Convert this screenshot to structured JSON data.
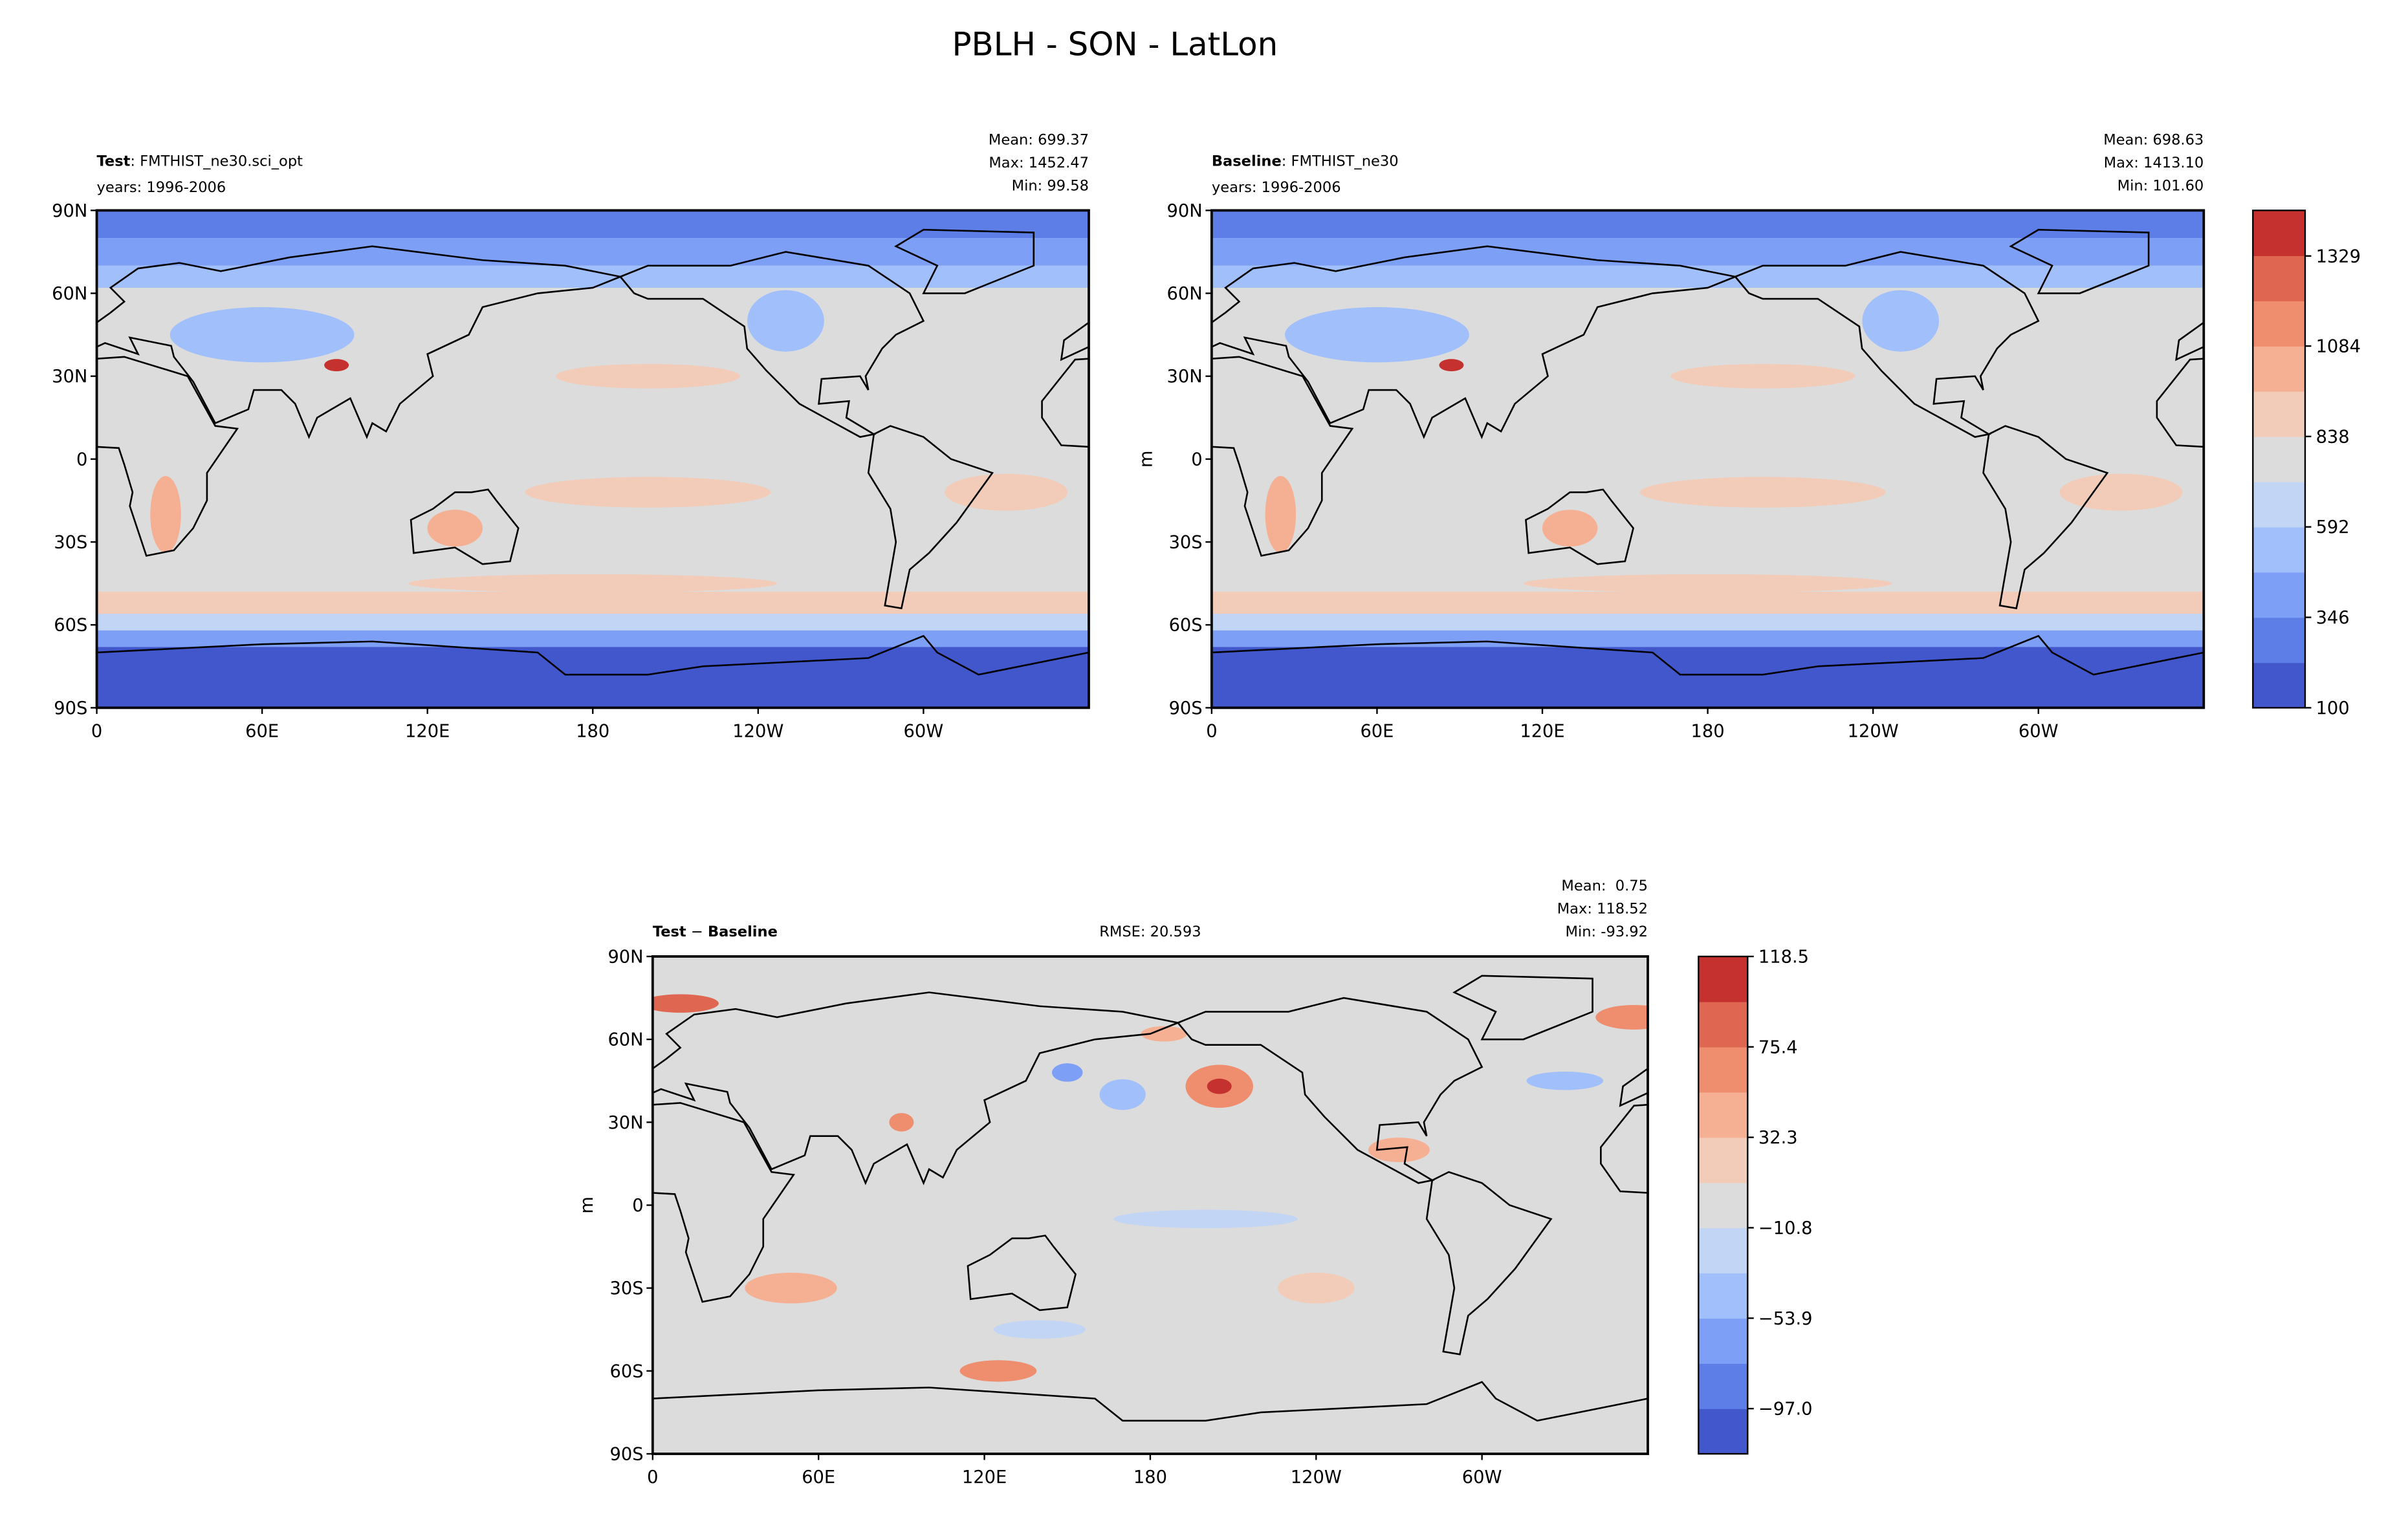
{
  "suptitle": "PBLH - SON - LatLon",
  "chart_data": [
    {
      "type": "contour",
      "title_parts": [
        {
          "text": "Test",
          "bold": true
        },
        {
          "text": ": FMTHIST_ne30.sci_opt"
        }
      ],
      "years": "years: 1996-2006",
      "stats": [
        "Mean: 699.37",
        "Max: 1452.47",
        "Min: 99.58"
      ],
      "xlim": [
        0,
        360
      ],
      "xticks": [
        0,
        {
          "value": 60,
          "label": "60E"
        },
        {
          "value": 120,
          "label": "120E"
        },
        180,
        {
          "value": 240,
          "label": "120W"
        },
        {
          "value": 300,
          "label": "60W"
        }
      ],
      "ylim": [
        -90,
        90
      ],
      "yticks": [
        {
          "value": -90,
          "label": "90S"
        },
        {
          "value": -60,
          "label": "60S"
        },
        {
          "value": -30,
          "label": "30S"
        },
        0,
        {
          "value": 30,
          "label": "30N"
        },
        {
          "value": 60,
          "label": "60N"
        },
        {
          "value": 90,
          "label": "90N"
        }
      ],
      "field": "absolute"
    },
    {
      "type": "contour",
      "title_parts": [
        {
          "text": "Baseline",
          "bold": true
        },
        {
          "text": ": FMTHIST_ne30"
        }
      ],
      "years": "years: 1996-2006",
      "stats": [
        "Mean: 698.63",
        "Max: 1413.10",
        "Min: 101.60"
      ],
      "ylabel": "m",
      "xlim": [
        0,
        360
      ],
      "xticks": [
        0,
        {
          "value": 60,
          "label": "60E"
        },
        {
          "value": 120,
          "label": "120E"
        },
        180,
        {
          "value": 240,
          "label": "120W"
        },
        {
          "value": 300,
          "label": "60W"
        }
      ],
      "ylim": [
        -90,
        90
      ],
      "yticks": [
        {
          "value": -90,
          "label": "90S"
        },
        {
          "value": -60,
          "label": "60S"
        },
        {
          "value": -30,
          "label": "30S"
        },
        0,
        {
          "value": 30,
          "label": "30N"
        },
        {
          "value": 60,
          "label": "60N"
        },
        {
          "value": 90,
          "label": "90N"
        }
      ],
      "field": "absolute",
      "colorbar": {
        "lim": [
          100,
          1453
        ],
        "ticks": [
          100,
          346,
          592,
          838,
          1084,
          1329
        ],
        "colors": [
          "#4257cc",
          "#5d7ee6",
          "#7d9ff5",
          "#a0bffb",
          "#c2d5f5",
          "#dcdcdc",
          "#f2ccb8",
          "#f5b094",
          "#ef8d6f",
          "#df6650",
          "#c4312f"
        ]
      }
    },
    {
      "type": "contour",
      "title_parts": [
        {
          "text": "Test",
          "bold": true
        },
        {
          "text": " − "
        },
        {
          "text": "Baseline",
          "bold": true
        }
      ],
      "rmse": "RMSE: 20.593",
      "stats": [
        "Mean:  0.75",
        "Max: 118.52",
        "Min: -93.92"
      ],
      "ylabel": "m",
      "xlim": [
        0,
        360
      ],
      "xticks": [
        0,
        {
          "value": 60,
          "label": "60E"
        },
        {
          "value": 120,
          "label": "120E"
        },
        180,
        {
          "value": 240,
          "label": "120W"
        },
        {
          "value": 300,
          "label": "60W"
        }
      ],
      "ylim": [
        -90,
        90
      ],
      "yticks": [
        {
          "value": -90,
          "label": "90S"
        },
        {
          "value": -60,
          "label": "60S"
        },
        {
          "value": -30,
          "label": "30S"
        },
        0,
        {
          "value": 30,
          "label": "30N"
        },
        {
          "value": 60,
          "label": "60N"
        },
        {
          "value": 90,
          "label": "90N"
        }
      ],
      "field": "difference",
      "colorbar": {
        "lim": [
          -118.55,
          118.5
        ],
        "ticks": [
          {
            "value": -97.0,
            "label": "−97.0"
          },
          {
            "value": -53.9,
            "label": "−53.9"
          },
          {
            "value": -10.8,
            "label": "−10.8"
          },
          32.3,
          75.4,
          118.5
        ],
        "colors": [
          "#4257cc",
          "#5d7ee6",
          "#7d9ff5",
          "#a0bffb",
          "#c2d5f5",
          "#dcdcdc",
          "#f2ccb8",
          "#f5b094",
          "#ef8d6f",
          "#df6650",
          "#c4312f"
        ]
      }
    }
  ]
}
